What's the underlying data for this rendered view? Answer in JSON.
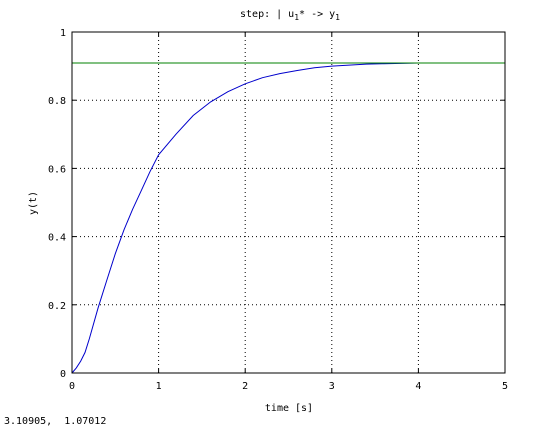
{
  "chart_data": {
    "type": "line",
    "title": {
      "main": "step: | u",
      "sub1": "1",
      "mid": "* -> y",
      "sub2": "1"
    },
    "xlabel": "time [s]",
    "ylabel": "y(t)",
    "xlim": [
      0,
      5
    ],
    "ylim": [
      0,
      1
    ],
    "x_ticks": [
      "0",
      "1",
      "2",
      "3",
      "4",
      "5"
    ],
    "y_ticks": [
      "0",
      "0.2",
      "0.4",
      "0.6",
      "0.8",
      "1"
    ],
    "grid": true,
    "colors": {
      "response": "#0000cc",
      "reference": "#008000"
    },
    "series": [
      {
        "x": [
          0,
          0.05,
          0.1,
          0.15,
          0.2,
          0.3,
          0.4,
          0.5,
          0.6,
          0.7,
          0.8,
          0.9,
          1.0,
          1.2,
          1.4,
          1.6,
          1.8,
          2.0,
          2.2,
          2.4,
          2.6,
          2.8,
          3.0,
          3.2,
          3.4,
          3.6,
          3.8,
          4.0,
          4.5,
          5.0
        ],
        "values": [
          0,
          0.015,
          0.035,
          0.06,
          0.1,
          0.19,
          0.27,
          0.35,
          0.42,
          0.48,
          0.535,
          0.59,
          0.64,
          0.7,
          0.755,
          0.795,
          0.825,
          0.848,
          0.866,
          0.878,
          0.887,
          0.895,
          0.9,
          0.903,
          0.906,
          0.907,
          0.908,
          0.909,
          0.909,
          0.909
        ]
      },
      {
        "x": [
          0,
          5
        ],
        "values": [
          0.909,
          0.909
        ]
      }
    ]
  },
  "status": {
    "readout": "3.10905,  1.07012"
  }
}
